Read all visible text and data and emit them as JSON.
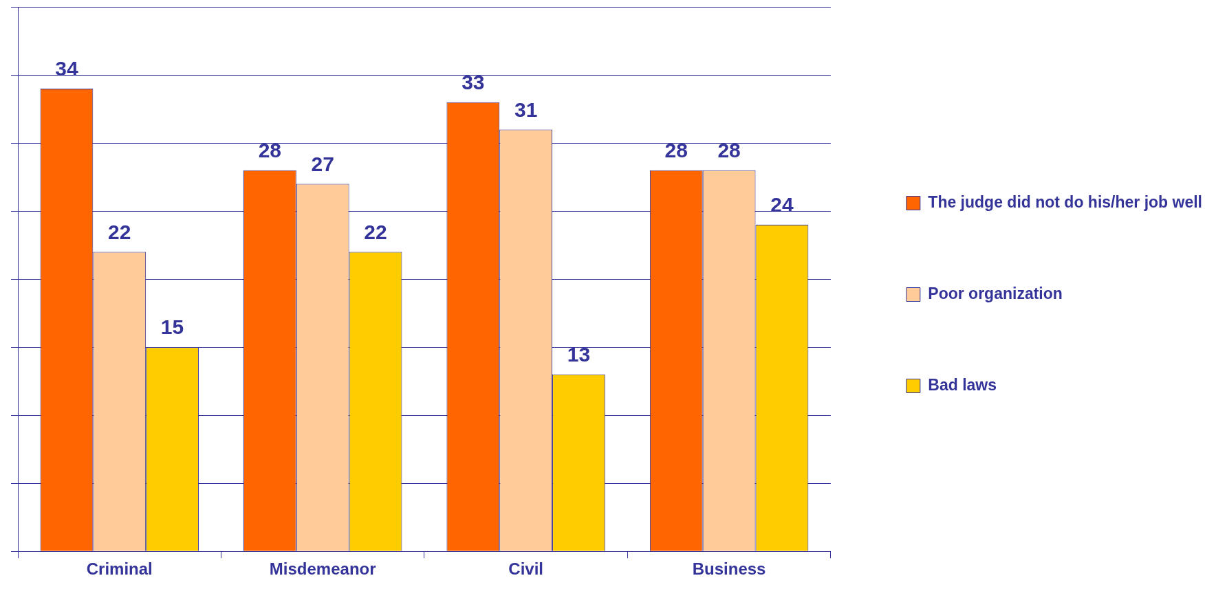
{
  "chart_data": {
    "type": "bar",
    "categories": [
      "Criminal",
      "Misdemeanor",
      "Civil",
      "Business"
    ],
    "series": [
      {
        "name": "The judge did not do his/her job well",
        "color": "#ff6600",
        "values": [
          34,
          28,
          33,
          28
        ]
      },
      {
        "name": "Poor organization",
        "color": "#ffcc99",
        "values": [
          22,
          27,
          31,
          28
        ]
      },
      {
        "name": "Bad laws",
        "color": "#ffcc00",
        "values": [
          15,
          22,
          13,
          24
        ]
      }
    ],
    "ylim": [
      0,
      40
    ],
    "yticks": [
      {
        "value": 0,
        "label": null
      },
      {
        "value": 5,
        "label": null
      },
      {
        "value": 10,
        "label": null
      },
      {
        "value": 15,
        "label": null
      },
      {
        "value": 20,
        "label": null
      },
      {
        "value": 25,
        "label": null
      },
      {
        "value": 30,
        "label": null
      },
      {
        "value": 35,
        "label": null
      },
      {
        "value": 40,
        "label": null
      }
    ],
    "grid": "y",
    "legend": "right",
    "data_labels": true
  }
}
